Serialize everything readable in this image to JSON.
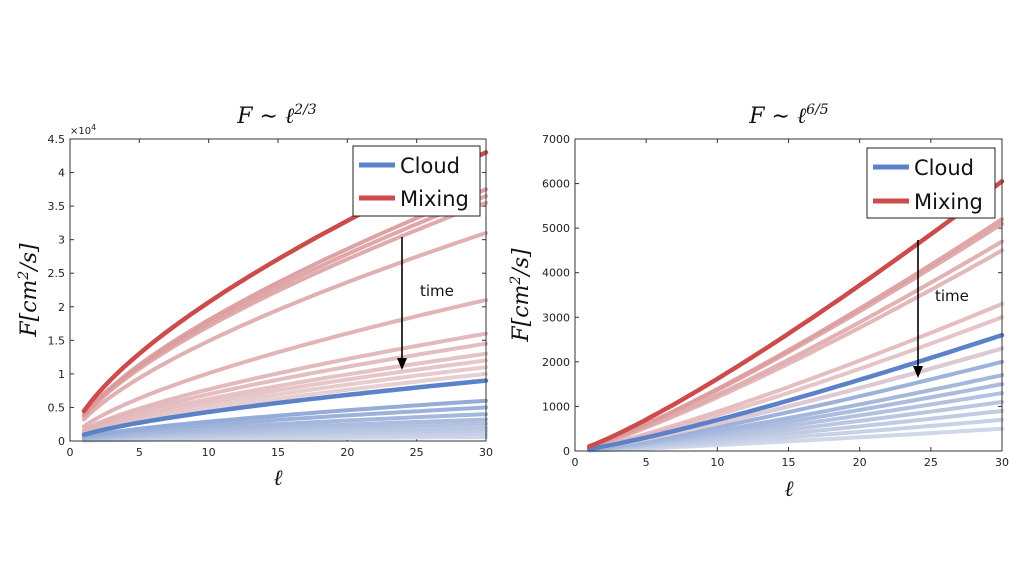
{
  "chart_data": [
    {
      "type": "line",
      "title": "F ∼ ℓ^(2/3)",
      "title_main": "F ∼ ℓ",
      "title_sup": "2/3",
      "xlabel": "ℓ",
      "ylabel_main": "F[cm",
      "ylabel_sup": "2",
      "ylabel_tail": "/s]",
      "xlim": [
        0,
        30
      ],
      "ylim": [
        0,
        45000
      ],
      "xticks": [
        "0",
        "5",
        "10",
        "15",
        "20",
        "25",
        "30"
      ],
      "xtick_values": [
        0,
        5,
        10,
        15,
        20,
        25,
        30
      ],
      "yticks": [
        "0",
        "0.5",
        "1",
        "1.5",
        "2",
        "2.5",
        "3",
        "3.5",
        "4",
        "4.5"
      ],
      "ytick_values": [
        0,
        5000,
        10000,
        15000,
        20000,
        25000,
        30000,
        35000,
        40000,
        45000
      ],
      "y_multiplier": "×10",
      "y_multiplier_exp": "4",
      "exponent": 0.6667,
      "x_range": [
        1,
        30
      ],
      "mixing_color": "#cc4b4b",
      "cloud_color": "#5b82c9",
      "legend": [
        {
          "label": "Cloud",
          "color": "#5b82c9"
        },
        {
          "label": "Mixing",
          "color": "#cc4b4b"
        }
      ],
      "legend_placement": "top-right",
      "annotation": {
        "text": "time",
        "arrow_x": 24,
        "arrow_y_start": 30500,
        "arrow_y_end": 10000
      },
      "mixing_end_values": [
        43000,
        37500,
        36500,
        35500,
        31000,
        21000,
        16000,
        14500,
        13000,
        12000,
        11000,
        10000,
        9000
      ],
      "cloud_end_values": [
        9000,
        6000,
        5000,
        4000,
        3200,
        2600,
        2000,
        1500,
        1000,
        600
      ],
      "main_mixing_value": 43000,
      "main_cloud_value": 9000
    },
    {
      "type": "line",
      "title": "F ∼ ℓ^(6/5)",
      "title_main": "F ∼ ℓ",
      "title_sup": "6/5",
      "xlabel": "ℓ",
      "ylabel_main": "F[cm",
      "ylabel_sup": "2",
      "ylabel_tail": "/s]",
      "xlim": [
        0,
        30
      ],
      "ylim": [
        0,
        7000
      ],
      "xticks": [
        "0",
        "5",
        "10",
        "15",
        "20",
        "25",
        "30"
      ],
      "xtick_values": [
        0,
        5,
        10,
        15,
        20,
        25,
        30
      ],
      "yticks": [
        "0",
        "1000",
        "2000",
        "3000",
        "4000",
        "5000",
        "6000",
        "7000"
      ],
      "ytick_values": [
        0,
        1000,
        2000,
        3000,
        4000,
        5000,
        6000,
        7000
      ],
      "exponent": 1.2,
      "x_range": [
        1,
        30
      ],
      "mixing_color": "#cc4b4b",
      "cloud_color": "#5b82c9",
      "legend": [
        {
          "label": "Cloud",
          "color": "#5b82c9"
        },
        {
          "label": "Mixing",
          "color": "#cc4b4b"
        }
      ],
      "legend_placement": "top-right",
      "annotation": {
        "text": "time",
        "arrow_x": 24,
        "arrow_y_start": 4750,
        "arrow_y_end": 1600
      },
      "mixing_end_values": [
        6050,
        5200,
        5100,
        4700,
        4500,
        3300,
        3000,
        2600,
        2300
      ],
      "cloud_end_values": [
        2600,
        2300,
        2000,
        1700,
        1500,
        1300,
        1100,
        900,
        700,
        500
      ],
      "main_mixing_value": 6050,
      "main_cloud_value": 2600
    }
  ]
}
